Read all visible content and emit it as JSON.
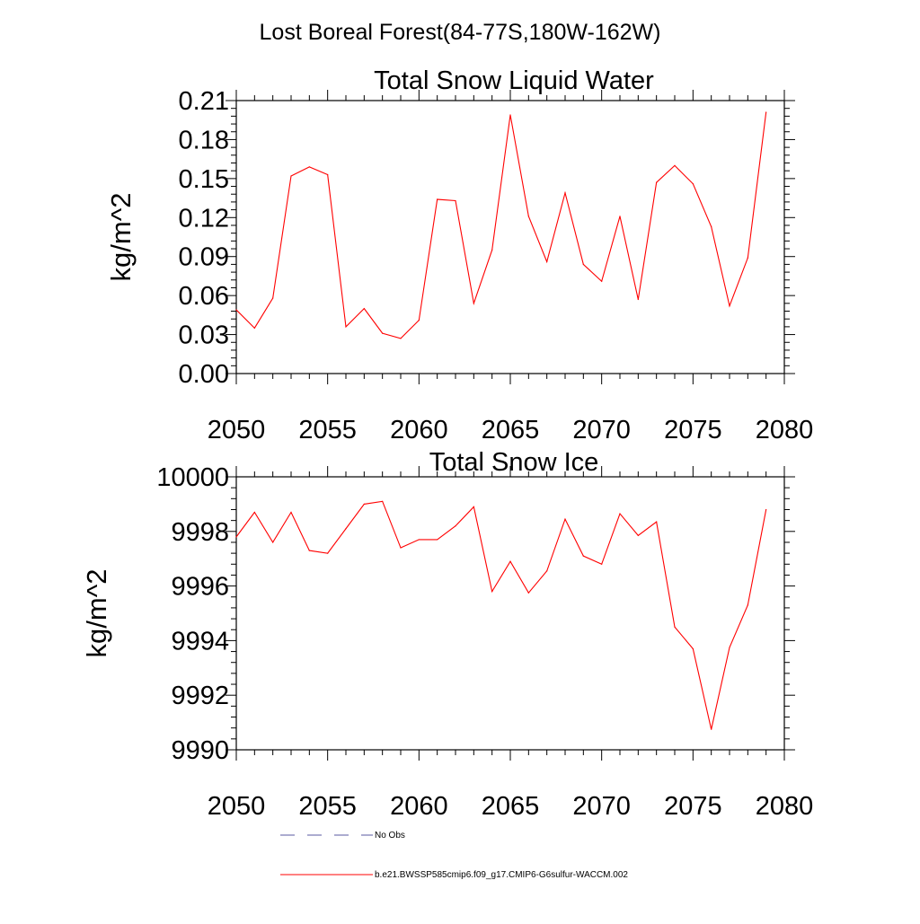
{
  "suptitle": "Lost Boreal Forest(84-77S,180W-162W)",
  "legend": {
    "obs_label": "No Obs",
    "model_label": "b.e21.BWSSP585cmip6.f09_g17.CMIP6-G6sulfur-WACCM.002",
    "obs_color": "#5a5aa0",
    "model_color": "#ff0000"
  },
  "chart_data": [
    {
      "type": "line",
      "title": "Total Snow Liquid Water",
      "xlabel": "",
      "ylabel": "kg/m^2",
      "xlim": [
        2050,
        2080
      ],
      "ylim": [
        0.0,
        0.21
      ],
      "xticks": [
        2050,
        2055,
        2060,
        2065,
        2070,
        2075,
        2080
      ],
      "yticks": [
        0.0,
        0.03,
        0.06,
        0.09,
        0.12,
        0.15,
        0.18,
        0.21
      ],
      "ytick_labels": [
        "0.00",
        "0.03",
        "0.06",
        "0.09",
        "0.12",
        "0.15",
        "0.18",
        "0.21"
      ],
      "grid": false,
      "series": [
        {
          "name": "b.e21.BWSSP585cmip6.f09_g17.CMIP6-G6sulfur-WACCM.002",
          "color": "#ff0000",
          "x": [
            2050,
            2051,
            2052,
            2053,
            2054,
            2055,
            2056,
            2057,
            2058,
            2059,
            2060,
            2061,
            2062,
            2063,
            2064,
            2065,
            2066,
            2067,
            2068,
            2069,
            2070,
            2071,
            2072,
            2073,
            2074,
            2075,
            2076,
            2077,
            2078,
            2079
          ],
          "y": [
            0.049,
            0.035,
            0.058,
            0.152,
            0.159,
            0.153,
            0.036,
            0.05,
            0.031,
            0.027,
            0.041,
            0.134,
            0.133,
            0.054,
            0.095,
            0.199,
            0.121,
            0.086,
            0.139,
            0.084,
            0.071,
            0.121,
            0.057,
            0.147,
            0.16,
            0.146,
            0.113,
            0.052,
            0.089,
            0.201
          ]
        }
      ]
    },
    {
      "type": "line",
      "title": "Total Snow Ice",
      "xlabel": "",
      "ylabel": "kg/m^2",
      "xlim": [
        2050,
        2080
      ],
      "ylim": [
        9990,
        10000
      ],
      "xticks": [
        2050,
        2055,
        2060,
        2065,
        2070,
        2075,
        2080
      ],
      "yticks": [
        9990,
        9992,
        9994,
        9996,
        9998,
        10000
      ],
      "ytick_labels": [
        "9990",
        "9992",
        "9994",
        "9996",
        "9998",
        "10000"
      ],
      "grid": false,
      "series": [
        {
          "name": "b.e21.BWSSP585cmip6.f09_g17.CMIP6-G6sulfur-WACCM.002",
          "color": "#ff0000",
          "x": [
            2050,
            2051,
            2052,
            2053,
            2054,
            2055,
            2056,
            2057,
            2058,
            2059,
            2060,
            2061,
            2062,
            2063,
            2064,
            2065,
            2066,
            2067,
            2068,
            2069,
            2070,
            2071,
            2072,
            2073,
            2074,
            2075,
            2076,
            2077,
            2078,
            2079
          ],
          "y": [
            9997.8,
            9998.7,
            9997.6,
            9998.7,
            9997.3,
            9997.2,
            9998.1,
            9999.0,
            9999.1,
            9997.4,
            9997.7,
            9997.7,
            9998.2,
            9998.9,
            9995.8,
            9996.9,
            9995.75,
            9996.55,
            9998.45,
            9997.1,
            9996.8,
            9998.65,
            9997.85,
            9998.35,
            9994.5,
            9993.7,
            9990.75,
            9993.75,
            9995.3,
            9998.8
          ]
        }
      ]
    }
  ]
}
